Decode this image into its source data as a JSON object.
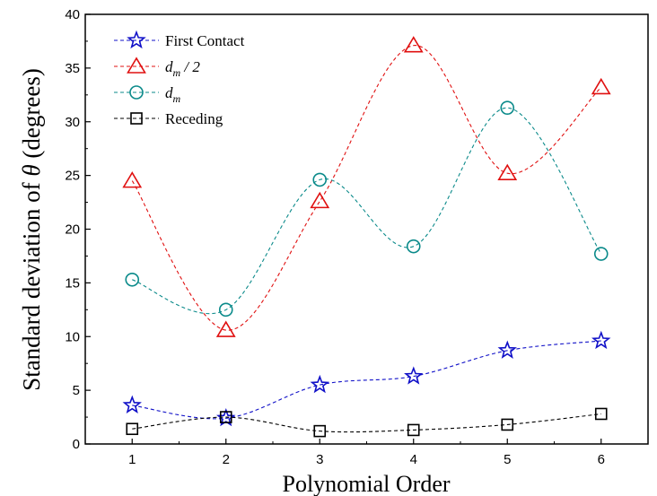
{
  "chart_data": {
    "type": "line",
    "title": "",
    "xlabel": "Polynomial Order",
    "ylabel_prefix": "Standard deviation of ",
    "ylabel_symbol": "θ",
    "ylabel_suffix": " (degrees)",
    "x": [
      1,
      2,
      3,
      4,
      5,
      6
    ],
    "xlim": [
      0.5,
      6.5
    ],
    "ylim": [
      0,
      40
    ],
    "xticks": [
      "1",
      "2",
      "3",
      "4",
      "5",
      "6"
    ],
    "yticks": [
      "0",
      "5",
      "10",
      "15",
      "20",
      "25",
      "30",
      "35",
      "40"
    ],
    "grid": false,
    "legend_position": "top-left",
    "series": [
      {
        "name": "First Contact",
        "main": "First Contact",
        "sub": "",
        "suffix": "",
        "marker": "star",
        "color": "#1010c8",
        "values": [
          3.6,
          2.4,
          5.5,
          6.3,
          8.7,
          9.6
        ]
      },
      {
        "name": "dm / 2",
        "main": "d",
        "sub": "m",
        "suffix": " / 2",
        "marker": "triangle",
        "color": "#e01010",
        "values": [
          24.5,
          10.6,
          22.6,
          37.1,
          25.2,
          33.2
        ]
      },
      {
        "name": "dm",
        "main": "d",
        "sub": "m",
        "suffix": "",
        "marker": "circle",
        "color": "#0a8a8a",
        "values": [
          15.3,
          12.5,
          24.6,
          18.4,
          31.3,
          17.7
        ]
      },
      {
        "name": "Receding",
        "main": "Receding",
        "sub": "",
        "suffix": "",
        "marker": "square",
        "color": "#000000",
        "values": [
          1.4,
          2.5,
          1.2,
          1.3,
          1.8,
          2.8
        ]
      }
    ]
  }
}
